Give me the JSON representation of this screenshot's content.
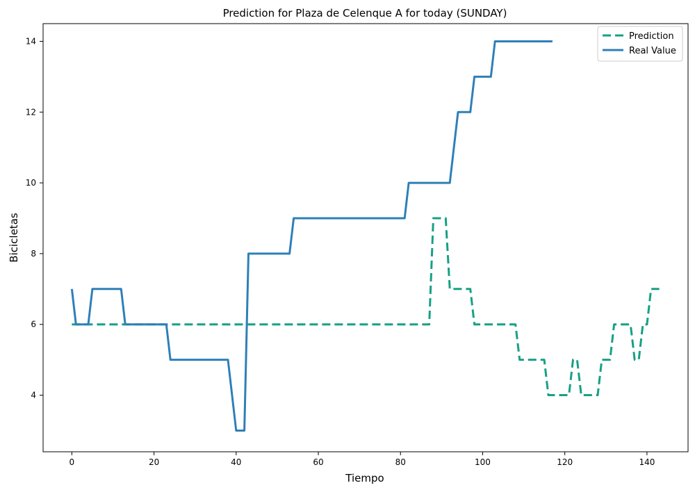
{
  "chart_data": {
    "type": "line",
    "title": "Prediction for Plaza de Celenque A for today (SUNDAY)",
    "xlabel": "Tiempo",
    "ylabel": "Bicicletas",
    "xlim": [
      -7,
      150
    ],
    "ylim": [
      2.4,
      14.5
    ],
    "xticks": [
      0,
      20,
      40,
      60,
      80,
      100,
      120,
      140
    ],
    "yticks": [
      4,
      6,
      8,
      10,
      12,
      14
    ],
    "grid": false,
    "legend_position": "top-right",
    "series": [
      {
        "name": "Prediction",
        "color": "#16a085",
        "style": "dashed",
        "points": [
          [
            0,
            6
          ],
          [
            87,
            6
          ],
          [
            88,
            9
          ],
          [
            91,
            9
          ],
          [
            92,
            7
          ],
          [
            97,
            7
          ],
          [
            98,
            6
          ],
          [
            108,
            6
          ],
          [
            109,
            5
          ],
          [
            115,
            5
          ],
          [
            116,
            4
          ],
          [
            121,
            4
          ],
          [
            122,
            5
          ],
          [
            123,
            5
          ],
          [
            124,
            4
          ],
          [
            128,
            4
          ],
          [
            129,
            5
          ],
          [
            131,
            5
          ],
          [
            132,
            6
          ],
          [
            136,
            6
          ],
          [
            137,
            5
          ],
          [
            138,
            5
          ],
          [
            139,
            6
          ],
          [
            140,
            6
          ],
          [
            141,
            7
          ],
          [
            143,
            7
          ]
        ]
      },
      {
        "name": "Real Value",
        "color": "#2e7fb8",
        "style": "solid",
        "points": [
          [
            0,
            7
          ],
          [
            1,
            6
          ],
          [
            4,
            6
          ],
          [
            5,
            7
          ],
          [
            12,
            7
          ],
          [
            13,
            6
          ],
          [
            23,
            6
          ],
          [
            24,
            5
          ],
          [
            38,
            5
          ],
          [
            40,
            3
          ],
          [
            42,
            3
          ],
          [
            43,
            8
          ],
          [
            53,
            8
          ],
          [
            54,
            9
          ],
          [
            81,
            9
          ],
          [
            82,
            10
          ],
          [
            92,
            10
          ],
          [
            94,
            12
          ],
          [
            97,
            12
          ],
          [
            98,
            13
          ],
          [
            102,
            13
          ],
          [
            103,
            14
          ],
          [
            117,
            14
          ]
        ]
      }
    ]
  }
}
